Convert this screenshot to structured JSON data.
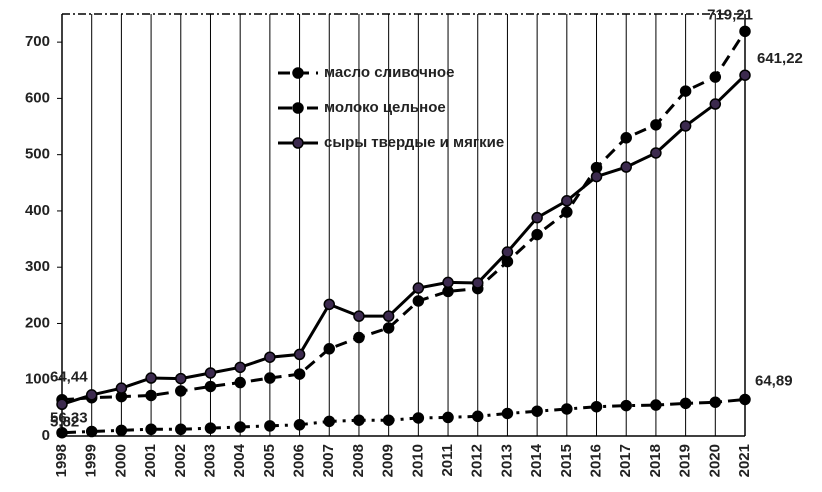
{
  "chart_data": {
    "type": "line",
    "categories": [
      "1998",
      "1999",
      "2000",
      "2001",
      "2002",
      "2003",
      "2004",
      "2005",
      "2006",
      "2007",
      "2008",
      "2009",
      "2010",
      "2011",
      "2012",
      "2013",
      "2014",
      "2015",
      "2016",
      "2017",
      "2018",
      "2019",
      "2020",
      "2021"
    ],
    "series": [
      {
        "name": "масло сливочное",
        "color": "#000000",
        "dash": "12,7",
        "values": [
          64.44,
          68,
          70,
          72,
          80,
          88,
          95,
          103,
          110,
          155,
          175,
          192,
          240,
          257,
          262,
          310,
          358,
          398,
          477,
          530,
          553,
          613,
          638,
          719.21
        ],
        "value_labels": [
          "64,44",
          null,
          null,
          null,
          null,
          null,
          null,
          null,
          null,
          null,
          null,
          null,
          null,
          null,
          null,
          null,
          null,
          null,
          null,
          null,
          null,
          null,
          null,
          "719,21"
        ]
      },
      {
        "name": "молоко цельное",
        "color": "#000000",
        "dash": "14,6,3,6",
        "values": [
          5.82,
          8,
          10,
          12,
          12,
          14,
          16,
          18,
          20,
          26,
          28,
          28,
          32,
          33,
          35,
          40,
          44,
          48,
          52,
          54,
          55,
          58,
          60,
          64.89
        ],
        "value_labels": [
          "5,82",
          null,
          null,
          null,
          null,
          null,
          null,
          null,
          null,
          null,
          null,
          null,
          null,
          null,
          null,
          null,
          null,
          null,
          null,
          null,
          null,
          null,
          null,
          "64,89"
        ]
      },
      {
        "name": "сыры твердые и мягкие",
        "color": "#000000",
        "marker": "#3c2a4e",
        "dash": "none",
        "values": [
          56.33,
          73,
          85,
          103,
          102,
          112,
          122,
          140,
          145,
          234,
          213,
          213,
          263,
          273,
          272,
          327,
          388,
          418,
          461,
          478,
          503,
          551,
          590,
          641.22
        ],
        "value_labels": [
          "56,33",
          null,
          null,
          null,
          null,
          null,
          null,
          null,
          null,
          null,
          null,
          null,
          null,
          null,
          null,
          null,
          null,
          null,
          null,
          null,
          null,
          null,
          null,
          "641,22"
        ]
      }
    ],
    "ylim": [
      0,
      750
    ],
    "yticks": [
      0,
      100,
      200,
      300,
      400,
      500,
      600,
      700
    ],
    "grid": true
  }
}
